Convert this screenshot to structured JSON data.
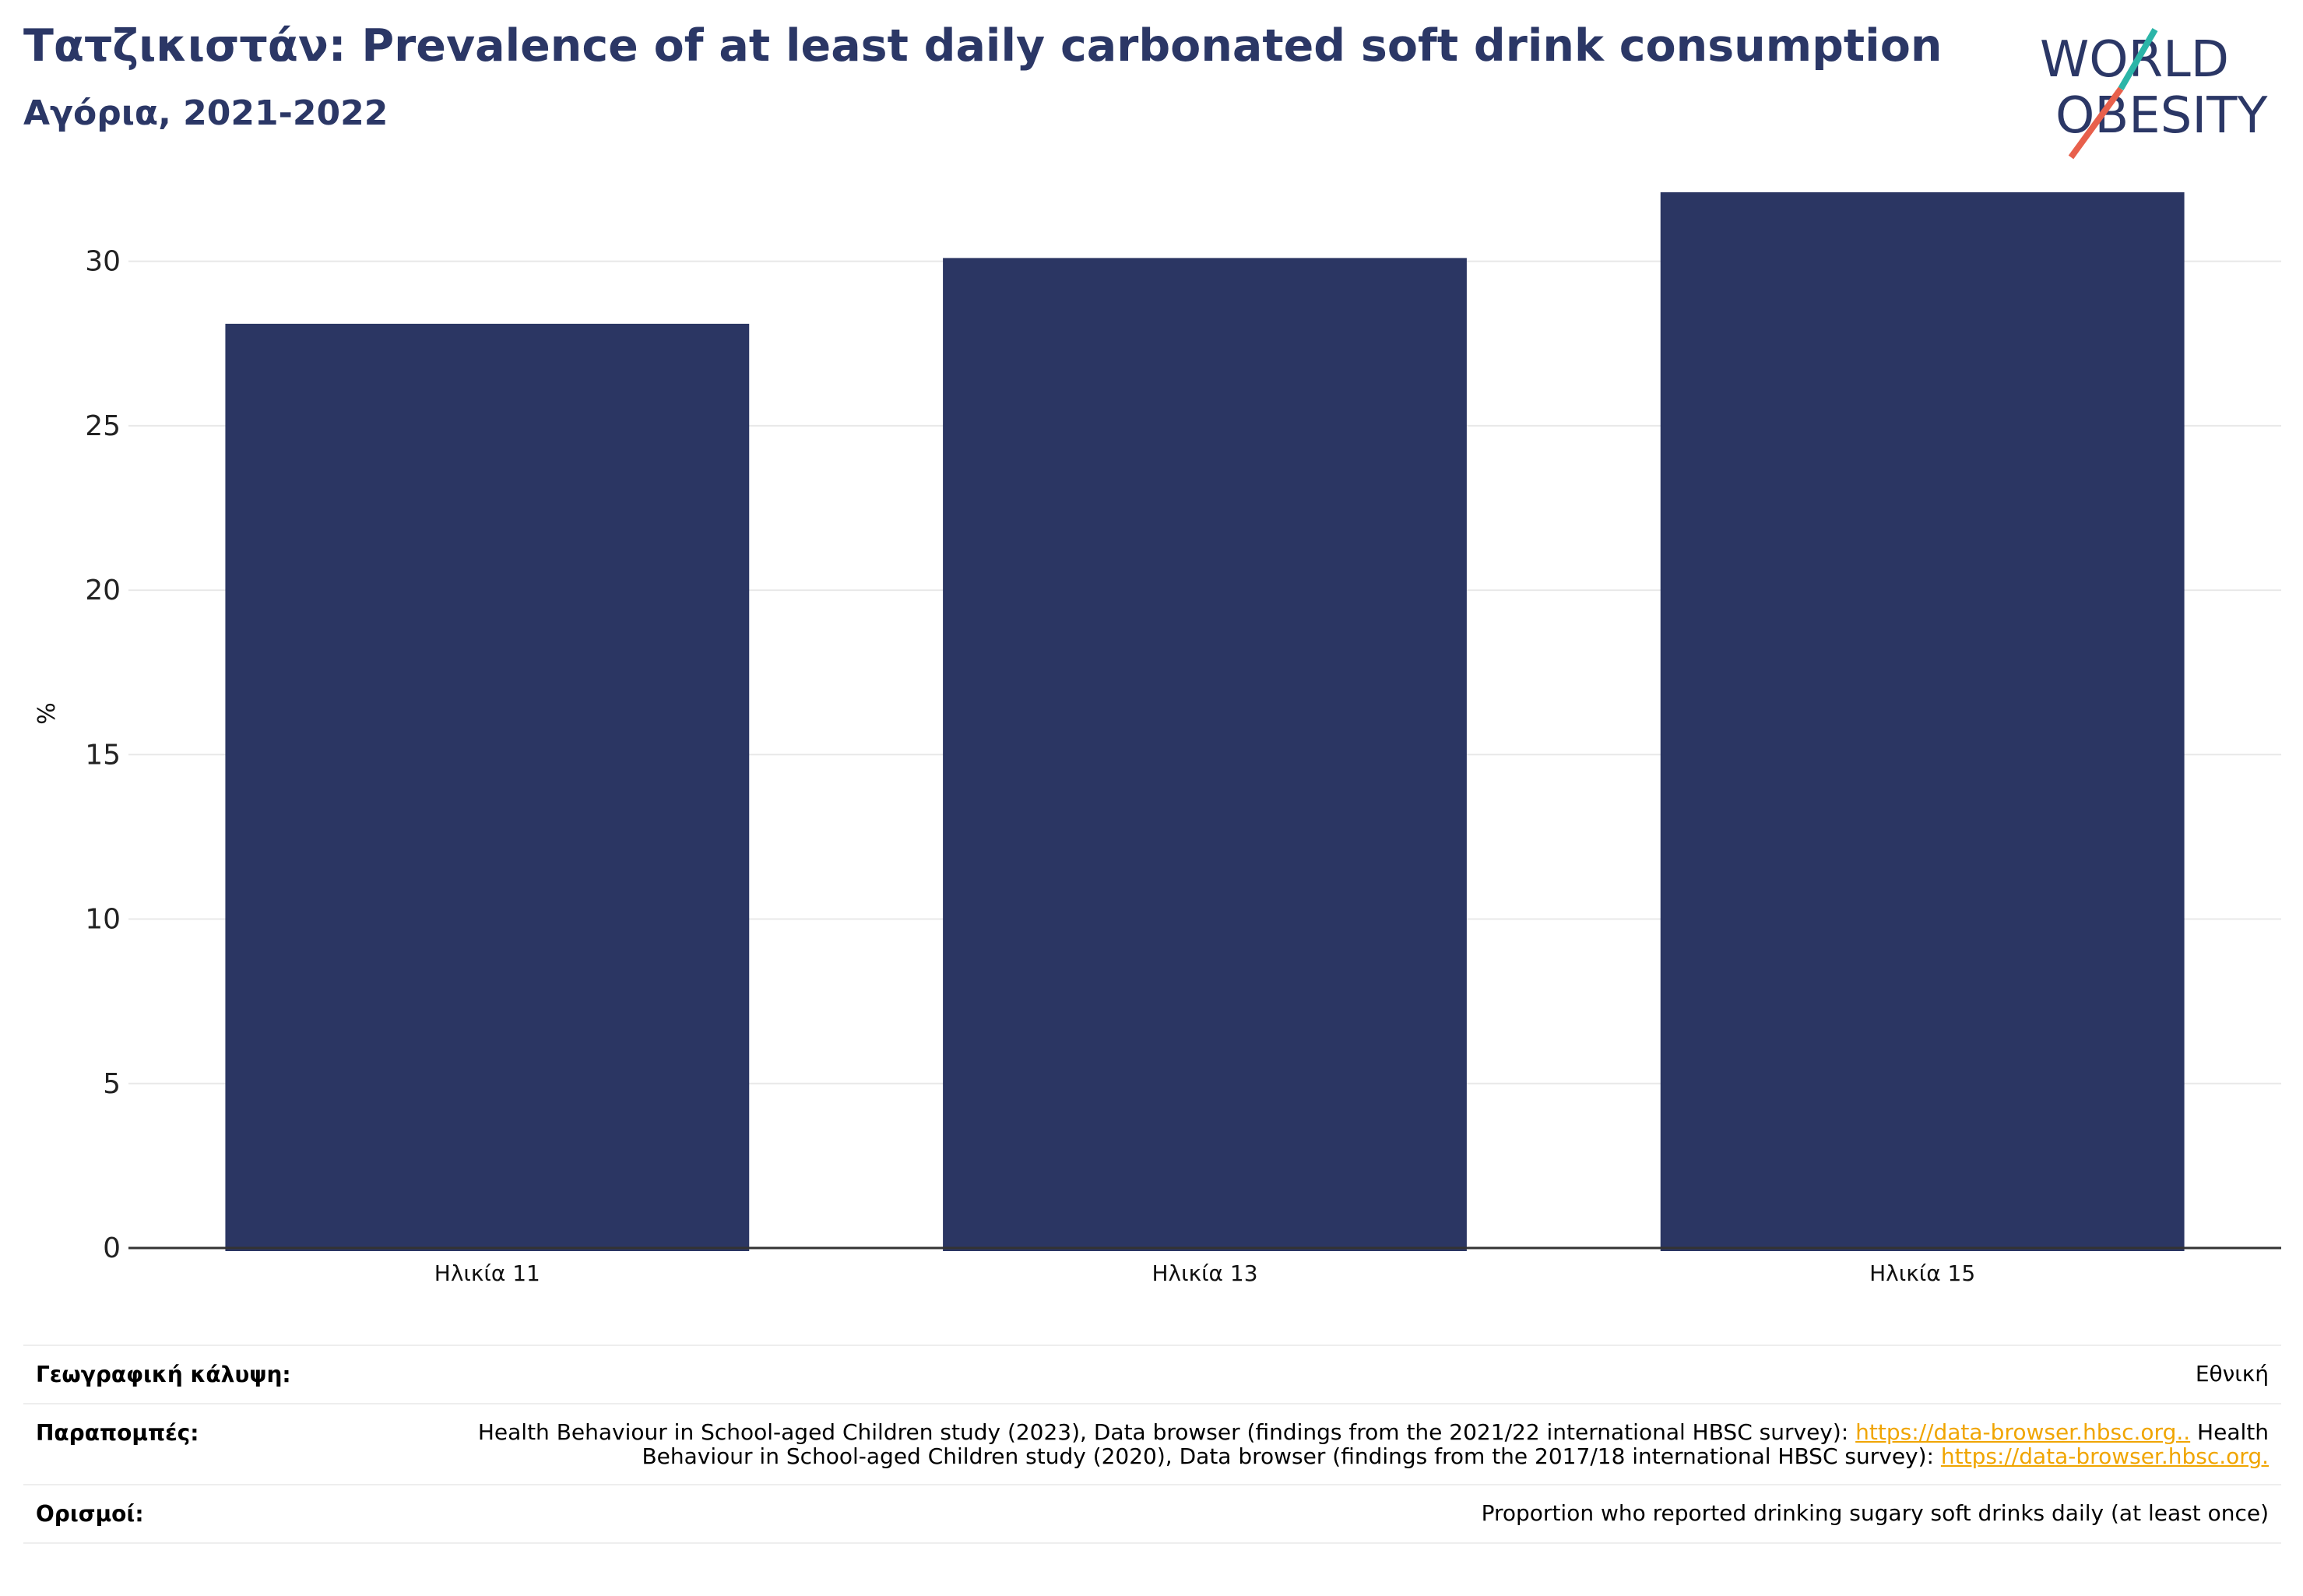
{
  "header": {
    "title": "Τατζικιστάν: Prevalence of at least daily carbonated soft drink consumption",
    "subtitle": "Αγόρια, 2021-2022"
  },
  "logo": {
    "line1": "WORLD",
    "line2": "OBESITY"
  },
  "colors": {
    "bar": "#2b3663",
    "title": "#2b3766",
    "grid": "#e8e8e8",
    "link": "#f0a500",
    "logo_teal": "#2bb5a8",
    "logo_red": "#e8604c"
  },
  "chart_data": {
    "type": "bar",
    "categories": [
      "Ηλικία 11",
      "Ηλικία 13",
      "Ηλικία 15"
    ],
    "values": [
      28.1,
      30.1,
      32.1
    ],
    "ylabel": "%",
    "ylim": [
      0,
      32.5
    ],
    "yticks": [
      0,
      5,
      10,
      15,
      20,
      25,
      30
    ],
    "grid": true
  },
  "info": {
    "coverage": {
      "label": "Γεωγραφική κάλυψη:",
      "value": "Εθνική"
    },
    "references": {
      "label": "Παραπομπές:",
      "text1": "Health Behaviour in School-aged Children study (2023), Data browser (findings from the 2021/22 international HBSC survey): ",
      "link1": "https://data-browser.hbsc.org..",
      "text2": " Health Behaviour in School-aged Children study (2020), Data browser (findings from the 2017/18 international HBSC survey): ",
      "link2": "https://data-browser.hbsc.org."
    },
    "definitions": {
      "label": "Ορισμοί:",
      "value": "Proportion who reported drinking sugary soft drinks daily (at least once)"
    }
  }
}
